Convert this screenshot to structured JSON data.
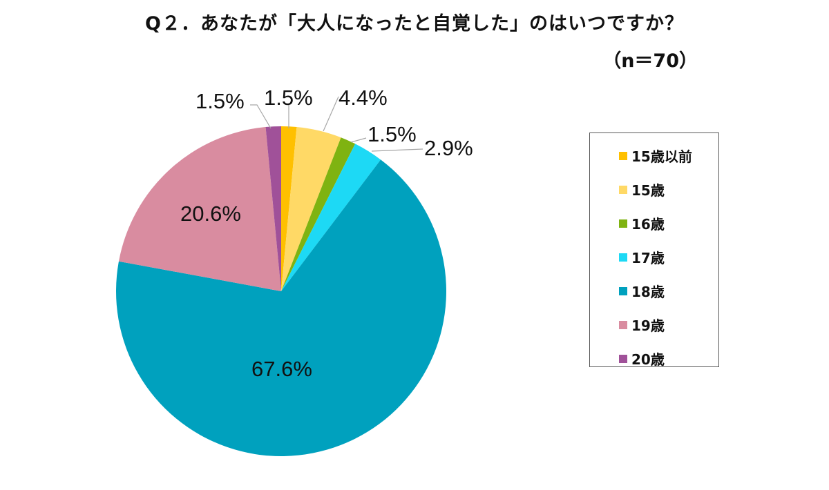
{
  "title": "Q２．あなたが「大人になったと自覚した」のはいつですか？",
  "sample_size": "（n＝70）",
  "legend": {
    "items": [
      {
        "label": "15歳以前",
        "color": "#FFC000"
      },
      {
        "label": "15歳",
        "color": "#FFD966"
      },
      {
        "label": "16歳",
        "color": "#7FB311"
      },
      {
        "label": "17歳",
        "color": "#1DD9F5"
      },
      {
        "label": "18歳",
        "color": "#00A1BE"
      },
      {
        "label": "19歳",
        "color": "#D98CA0"
      },
      {
        "label": "20歳",
        "color": "#A05199"
      }
    ]
  },
  "data_labels": [
    "1.5%",
    "4.4%",
    "1.5%",
    "2.9%",
    "67.6%",
    "20.6%",
    "1.5%"
  ],
  "chart_data": {
    "type": "pie",
    "title": "Q２．あなたが「大人になったと自覚した」のはいつですか？",
    "subtitle": "（n＝70）",
    "categories": [
      "15歳以前",
      "15歳",
      "16歳",
      "17歳",
      "18歳",
      "19歳",
      "20歳"
    ],
    "values": [
      1.5,
      4.4,
      1.5,
      2.9,
      67.6,
      20.6,
      1.5
    ],
    "unit": "%",
    "colors": [
      "#FFC000",
      "#FFD966",
      "#7FB311",
      "#1DD9F5",
      "#00A1BE",
      "#D98CA0",
      "#A05199"
    ],
    "start_angle": "12 o'clock, clockwise",
    "legend_position": "right"
  }
}
